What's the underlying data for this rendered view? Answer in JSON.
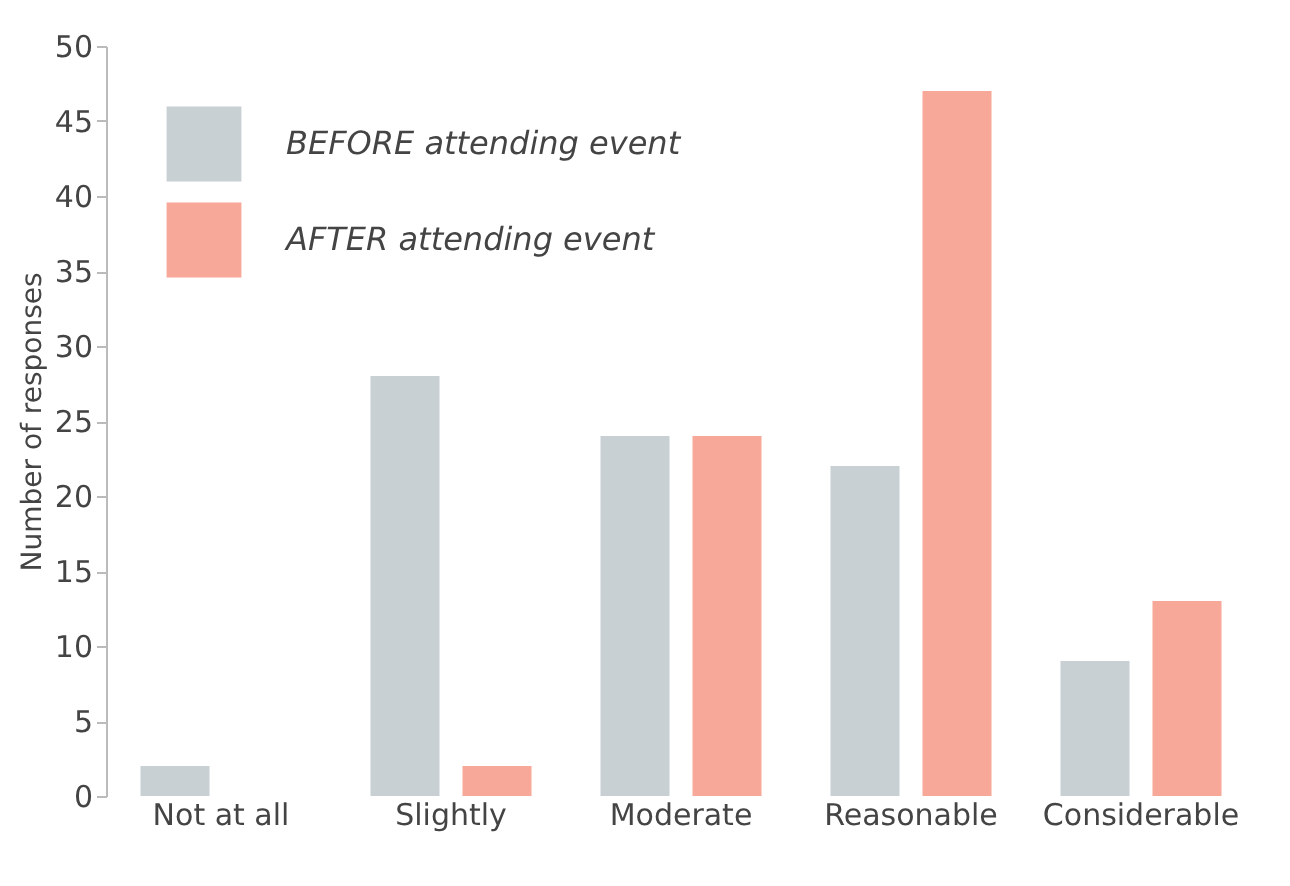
{
  "chart_data": {
    "type": "bar",
    "ylabel": "Number of responses",
    "categories": [
      "Not at all",
      "Slightly",
      "Moderate",
      "Reasonable",
      "Considerable"
    ],
    "series": [
      {
        "name": "BEFORE attending event",
        "color": "#c8d0d3",
        "values": [
          2,
          28,
          24,
          22,
          9
        ]
      },
      {
        "name": "AFTER attending event",
        "color": "#f7a898",
        "values": [
          0,
          2,
          24,
          47,
          13
        ]
      }
    ],
    "ylim": [
      0,
      50
    ],
    "yticks": [
      0,
      5,
      10,
      15,
      20,
      25,
      30,
      35,
      40,
      45,
      50
    ],
    "grid": false,
    "legend": "top left"
  }
}
